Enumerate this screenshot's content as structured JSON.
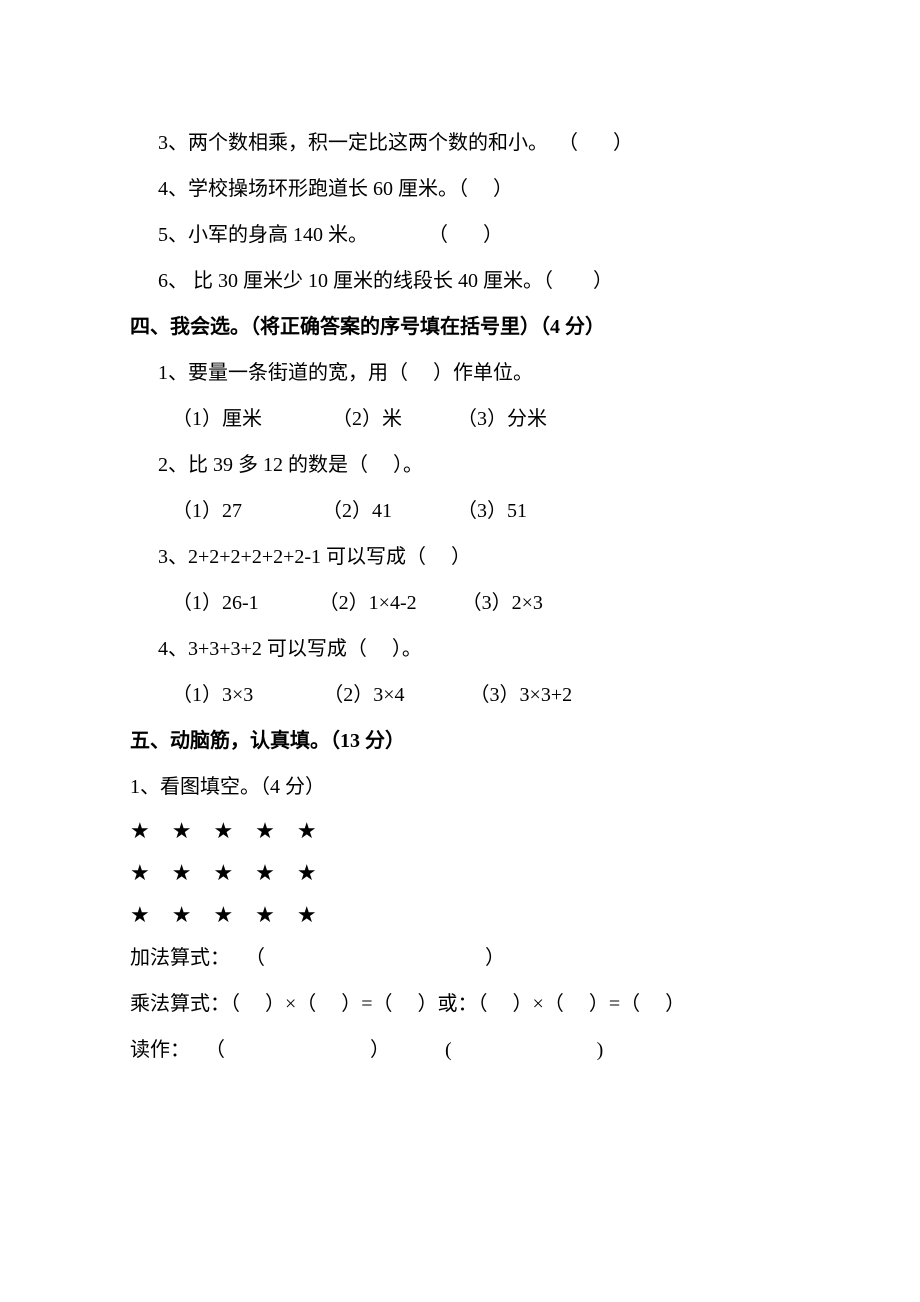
{
  "q3_tf": {
    "3": "3、两个数相乘，积一定比这两个数的和小。  （       ）",
    "4": "4、学校操场环形跑道长 60 厘米。（     ）",
    "5": "5、小军的身高 140 米。            （       ）",
    "6": "6、 比 30 厘米少 10 厘米的线段长 40 厘米。（        ）"
  },
  "s4": {
    "heading": "四、我会选。（将正确答案的序号填在括号里）（4 分）",
    "q1": {
      "stem": "1、要量一条街道的宽，用（     ）作单位。",
      "opts": "（1）厘米              （2）米           （3）分米"
    },
    "q2": {
      "stem": "2、比 39 多 12 的数是（     ）。",
      "opts": "（1）27                （2）41             （3）51"
    },
    "q3": {
      "stem": "3、2+2+2+2+2+2-1 可以写成（     ）",
      "opts": "（1）26-1            （2）1×4-2         （3）2×3"
    },
    "q4": {
      "stem": "4、3+3+3+2 可以写成（     ）。",
      "opts": "（1）3×3              （2）3×4             （3）3×3+2"
    }
  },
  "s5": {
    "heading": "五、动脑筋，认真填。（13 分）",
    "q1_lead": "1、看图填空。（4 分）",
    "stars_row": "★★★★★",
    "add_line": "加法算式：   （                                            ）",
    "mul_line": "乘法算式：（     ）×（     ）=（     ）或：（     ）×（     ）=（     ）",
    "read_line": "读作：   （                             ）           (                             )"
  }
}
